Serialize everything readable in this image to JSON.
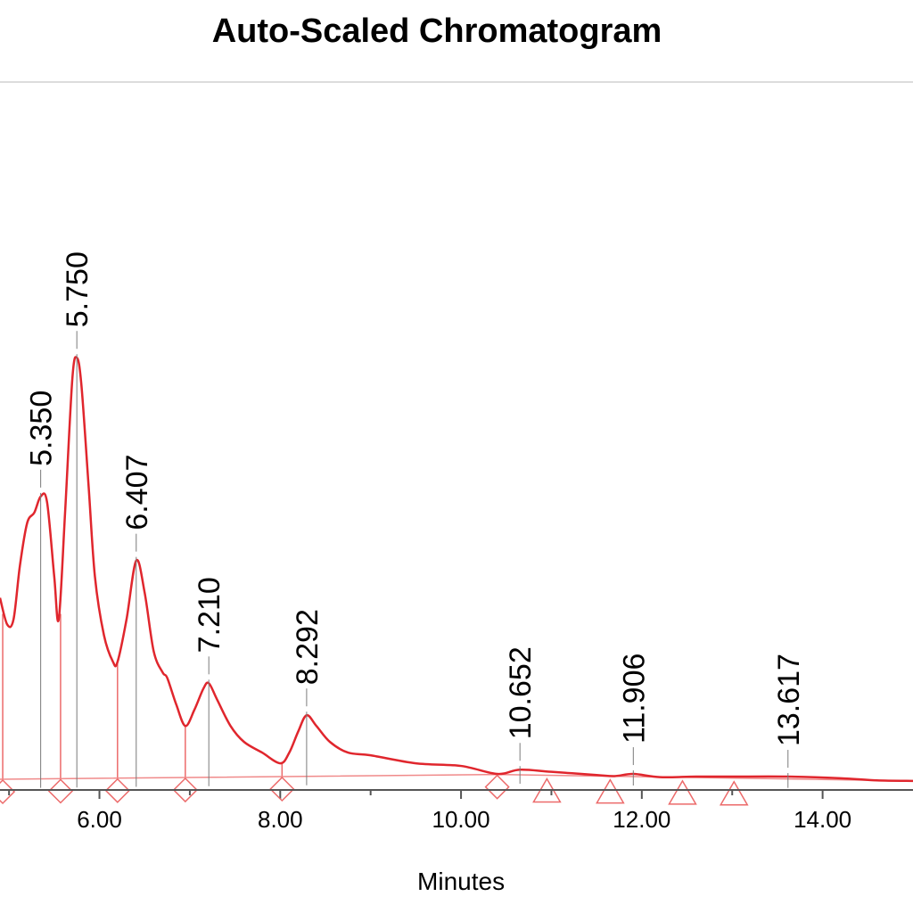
{
  "chart_data": {
    "type": "line",
    "title": "Auto-Scaled Chromatogram",
    "xlabel": "Minutes",
    "ylabel": "",
    "xlim": [
      4.9,
      15.0
    ],
    "ylim": [
      -0.02,
      1.3
    ],
    "grid": false,
    "x_ticks": [
      6.0,
      8.0,
      10.0,
      12.0,
      14.0
    ],
    "x_tick_labels": [
      "6.00",
      "8.00",
      "10.00",
      "12.00",
      "14.00"
    ],
    "series": [
      {
        "x": [
          4.9,
          4.98,
          5.05,
          5.12,
          5.2,
          5.28,
          5.35,
          5.42,
          5.5,
          5.55,
          5.62,
          5.7,
          5.75,
          5.8,
          5.88,
          5.95,
          6.05,
          6.15,
          6.2,
          6.3,
          6.407,
          6.5,
          6.6,
          6.7,
          6.75,
          6.85,
          6.95,
          7.05,
          7.15,
          7.21,
          7.3,
          7.45,
          7.6,
          7.8,
          8.0,
          8.1,
          8.2,
          8.292,
          8.4,
          8.55,
          8.75,
          9.0,
          9.5,
          10.0,
          10.4,
          10.652,
          11.0,
          11.5,
          11.7,
          11.906,
          12.2,
          12.6,
          13.0,
          13.617,
          14.2,
          14.6,
          15.0
        ],
        "y": [
          0.34,
          0.29,
          0.3,
          0.4,
          0.48,
          0.5,
          0.53,
          0.52,
          0.38,
          0.3,
          0.5,
          0.75,
          0.79,
          0.74,
          0.55,
          0.38,
          0.27,
          0.22,
          0.22,
          0.3,
          0.41,
          0.35,
          0.24,
          0.2,
          0.19,
          0.14,
          0.1,
          0.13,
          0.17,
          0.18,
          0.15,
          0.1,
          0.07,
          0.05,
          0.03,
          0.05,
          0.09,
          0.12,
          0.1,
          0.07,
          0.05,
          0.045,
          0.03,
          0.025,
          0.01,
          0.018,
          0.014,
          0.008,
          0.006,
          0.01,
          0.004,
          0.005,
          0.005,
          0.005,
          0.002,
          -0.002,
          -0.003
        ]
      }
    ],
    "peaks": [
      {
        "label": "5.350",
        "x": 5.35,
        "y": 0.53
      },
      {
        "label": "5.750",
        "x": 5.75,
        "y": 0.79
      },
      {
        "label": "6.407",
        "x": 6.407,
        "y": 0.41
      },
      {
        "label": "7.210",
        "x": 7.21,
        "y": 0.18
      },
      {
        "label": "8.292",
        "x": 8.292,
        "y": 0.12
      },
      {
        "label": "10.652",
        "x": 10.652,
        "y": 0.018
      },
      {
        "label": "11.906",
        "x": 11.906,
        "y": 0.01
      },
      {
        "label": "13.617",
        "x": 13.617,
        "y": 0.005
      }
    ],
    "valley_drops": [
      {
        "x": 4.93,
        "y": 0.31
      },
      {
        "x": 5.57,
        "y": 0.31
      },
      {
        "x": 6.2,
        "y": 0.22
      },
      {
        "x": 6.95,
        "y": 0.1
      },
      {
        "x": 8.02,
        "y": 0.03
      }
    ],
    "baseline": [
      [
        4.9,
        0.0
      ],
      [
        10.4,
        0.009
      ],
      [
        15.0,
        -0.003
      ]
    ],
    "diamond_markers": [
      4.93,
      5.57,
      6.2,
      6.95,
      8.02,
      10.4
    ],
    "triangle_markers": [
      10.95,
      11.65,
      12.45,
      13.02
    ],
    "colors": {
      "trace": "#e0262d",
      "baseline": "#f08a8a",
      "markers": "#ec6a6a",
      "callout": "#7a7a7a",
      "axis": "#555555"
    }
  }
}
